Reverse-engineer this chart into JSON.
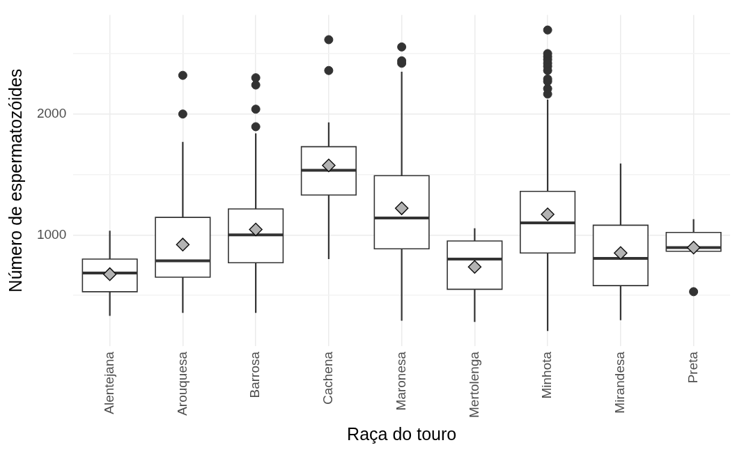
{
  "chart_data": {
    "type": "box",
    "xlabel": "Raça do touro",
    "ylabel": "Número de espermatozóides",
    "categories": [
      "Alentejana",
      "Arouquesa",
      "Barrosa",
      "Cachena",
      "Maronesa",
      "Mertolenga",
      "Minhota",
      "Mirandesa",
      "Preta"
    ],
    "color": "#333333",
    "grid": true,
    "legend": false,
    "ylim": [
      80,
      2820
    ],
    "yticks": [
      {
        "value": 500,
        "label": null
      },
      1000,
      {
        "value": 1500,
        "label": null
      },
      2000,
      {
        "value": 2500,
        "label": null
      }
    ],
    "boxes": [
      {
        "low": 330,
        "q1": 530,
        "median": 685,
        "q3": 800,
        "high": 1035,
        "mean": 675
      },
      {
        "low": 355,
        "q1": 650,
        "median": 785,
        "q3": 1145,
        "high": 1770,
        "mean": 920,
        "outliers": [
          2000,
          2320
        ]
      },
      {
        "low": 355,
        "q1": 770,
        "median": 1000,
        "q3": 1215,
        "high": 1840,
        "mean": 1045,
        "outliers": [
          1895,
          2040,
          2240,
          2300
        ]
      },
      {
        "low": 800,
        "q1": 1330,
        "median": 1535,
        "q3": 1730,
        "high": 1930,
        "mean": 1575,
        "outliers": [
          2360,
          2615
        ]
      },
      {
        "low": 290,
        "q1": 885,
        "median": 1140,
        "q3": 1490,
        "high": 2350,
        "mean": 1220,
        "outliers": [
          2420,
          2440,
          2555
        ]
      },
      {
        "low": 280,
        "q1": 550,
        "median": 800,
        "q3": 950,
        "high": 1055,
        "mean": 735
      },
      {
        "low": 205,
        "q1": 850,
        "median": 1100,
        "q3": 1360,
        "high": 2120,
        "mean": 1170,
        "outliers": [
          2165,
          2210,
          2270,
          2290,
          2360,
          2395,
          2420,
          2450,
          2475,
          2500,
          2695
        ]
      },
      {
        "low": 295,
        "q1": 580,
        "median": 805,
        "q3": 1080,
        "high": 1590,
        "mean": 850
      },
      {
        "low": 865,
        "q1": 865,
        "median": 895,
        "q3": 1020,
        "high": 1130,
        "mean": 895,
        "outliers": [
          530
        ]
      }
    ]
  }
}
